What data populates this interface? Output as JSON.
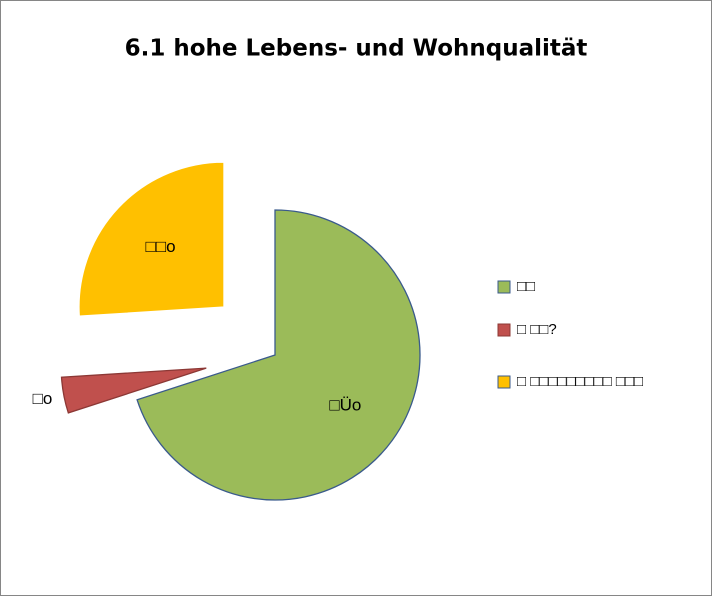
{
  "chart_data": {
    "type": "pie",
    "title": "6.1 hohe Lebens- und Wohnqualität",
    "categories": [
      "□□",
      "□ □□?",
      "□  □□□□□□□□□ □□□"
    ],
    "values": [
      70,
      4,
      26
    ],
    "value_labels": [
      "□Üo",
      "□o",
      "□□o"
    ],
    "colors": [
      "#9bbb59",
      "#c0504d",
      "#ffc000"
    ],
    "edge_colors": [
      "#3a5a8c",
      "#8c3835",
      "#ffffff"
    ],
    "legend": "right"
  }
}
